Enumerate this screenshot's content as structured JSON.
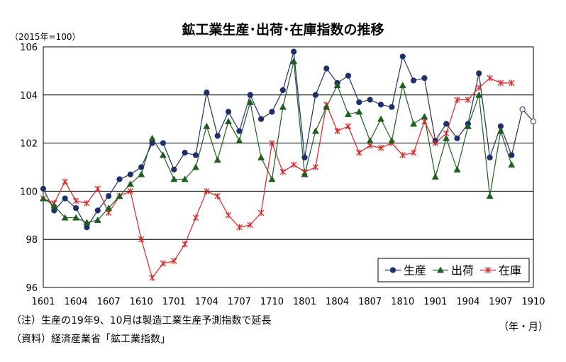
{
  "chart_data": {
    "type": "line",
    "title": "鉱工業生産･出荷･在庫指数の推移",
    "unit_label": "（2015年=100）",
    "x_unit_label": "（年・月）",
    "ylim": [
      96,
      106
    ],
    "yticks": [
      "96",
      "98",
      "100",
      "102",
      "104",
      "106"
    ],
    "x_tick_labels": [
      "1601",
      "1604",
      "1607",
      "1610",
      "1701",
      "1704",
      "1707",
      "1710",
      "1801",
      "1804",
      "1807",
      "1810",
      "1901",
      "1904",
      "1907",
      "1910"
    ],
    "grid": true,
    "legend": "bottom-right",
    "series": [
      {
        "name": "生産",
        "color": "#1f2f6b",
        "marker": "circle",
        "values": [
          100.1,
          99.2,
          99.7,
          99.3,
          98.5,
          99.2,
          99.8,
          100.5,
          100.7,
          101.0,
          102.0,
          102.0,
          100.9,
          101.6,
          101.5,
          104.1,
          102.3,
          103.3,
          102.5,
          104.0,
          103.0,
          103.3,
          104.2,
          105.8,
          101.4,
          104.0,
          105.1,
          104.5,
          104.8,
          103.7,
          103.8,
          103.6,
          103.5,
          105.6,
          104.6,
          104.7,
          102.1,
          102.8,
          102.2,
          102.8,
          104.9,
          101.4,
          102.7,
          101.5,
          null,
          null
        ],
        "forecast_values": [
          null,
          null,
          null,
          null,
          null,
          null,
          null,
          null,
          null,
          null,
          null,
          null,
          null,
          null,
          null,
          null,
          null,
          null,
          null,
          null,
          null,
          null,
          null,
          null,
          null,
          null,
          null,
          null,
          null,
          null,
          null,
          null,
          null,
          null,
          null,
          null,
          null,
          null,
          null,
          null,
          null,
          null,
          null,
          101.5,
          103.4,
          102.9
        ]
      },
      {
        "name": "出荷",
        "color": "#1e5e1e",
        "marker": "triangle",
        "values": [
          99.7,
          99.4,
          98.9,
          98.9,
          98.7,
          98.8,
          99.3,
          99.8,
          100.3,
          100.7,
          102.2,
          101.5,
          100.5,
          100.5,
          101.0,
          102.7,
          101.3,
          102.9,
          102.1,
          103.7,
          101.4,
          100.5,
          103.5,
          105.4,
          100.7,
          102.5,
          103.5,
          104.4,
          103.2,
          103.3,
          102.1,
          103.0,
          102.1,
          104.4,
          102.8,
          103.1,
          100.6,
          102.2,
          100.9,
          102.7,
          104.0,
          99.8,
          102.5,
          101.1,
          null,
          null
        ]
      },
      {
        "name": "在庫",
        "color": "#dd2222",
        "marker": "x",
        "values": [
          99.7,
          99.5,
          100.4,
          99.6,
          99.5,
          100.1,
          99.1,
          99.8,
          100.0,
          98.0,
          96.4,
          97.0,
          97.1,
          97.8,
          98.9,
          100.0,
          99.8,
          99.0,
          98.5,
          98.6,
          99.1,
          102.0,
          100.8,
          101.1,
          100.8,
          101.0,
          103.6,
          102.5,
          102.7,
          101.6,
          101.9,
          101.8,
          102.0,
          101.5,
          101.6,
          102.9,
          102.0,
          102.4,
          103.8,
          103.8,
          104.3,
          104.7,
          104.5,
          104.5,
          null,
          null
        ]
      }
    ]
  },
  "notes": {
    "note1": "（注）生産の19年9、10月は製造工業生産予測指数で延長",
    "note2": "（資料）経済産業省「鉱工業指数」"
  }
}
